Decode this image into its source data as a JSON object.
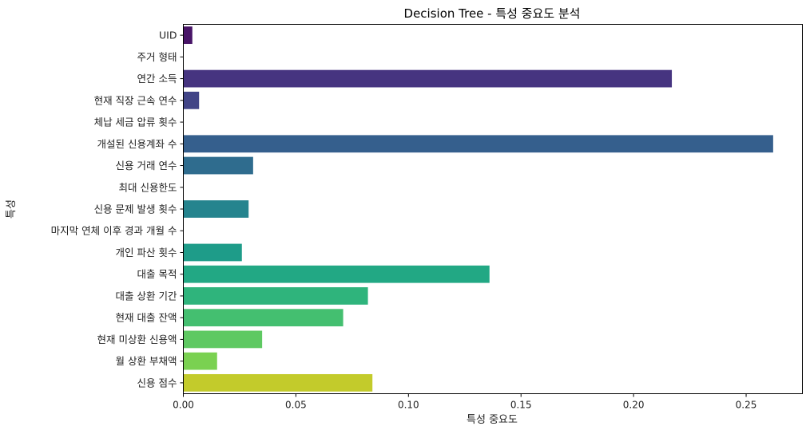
{
  "chart_data": {
    "type": "bar",
    "orientation": "horizontal",
    "title": "Decision Tree - 특성 중요도 분석",
    "xlabel": "특성 중요도",
    "ylabel": "특성",
    "xlim": [
      0,
      0.275
    ],
    "xticks": [
      0,
      0.05,
      0.1,
      0.15,
      0.2,
      0.25
    ],
    "xtick_labels": [
      "0.00",
      "0.05",
      "0.10",
      "0.15",
      "0.20",
      "0.25"
    ],
    "grid": false,
    "categories": [
      "UID",
      "주거 형태",
      "연간 소득",
      "현재 직장 근속 연수",
      "체납 세금 압류 횟수",
      "개설된 신용계좌 수",
      "신용 거래 연수",
      "최대 신용한도",
      "신용 문제 발생 횟수",
      "마지막 연체 이후 경과 개월 수",
      "개인 파산 횟수",
      "대출 목적",
      "대출 상환 기간",
      "현재 대출 잔액",
      "현재 미상환 신용액",
      "월 상환 부채액",
      "신용 점수"
    ],
    "values": [
      0.004,
      0.0,
      0.217,
      0.007,
      0.0,
      0.262,
      0.031,
      0.0,
      0.029,
      0.0,
      0.026,
      0.136,
      0.082,
      0.071,
      0.035,
      0.015,
      0.084
    ],
    "colors": [
      "#481467",
      "#482576",
      "#463480",
      "#414487",
      "#3b528b",
      "#355f8d",
      "#2f6c8e",
      "#2a788e",
      "#25848e",
      "#21918c",
      "#1e9c89",
      "#22a884",
      "#2fb47c",
      "#44bf70",
      "#5ec962",
      "#7ad151",
      "#c3cb2b"
    ]
  }
}
